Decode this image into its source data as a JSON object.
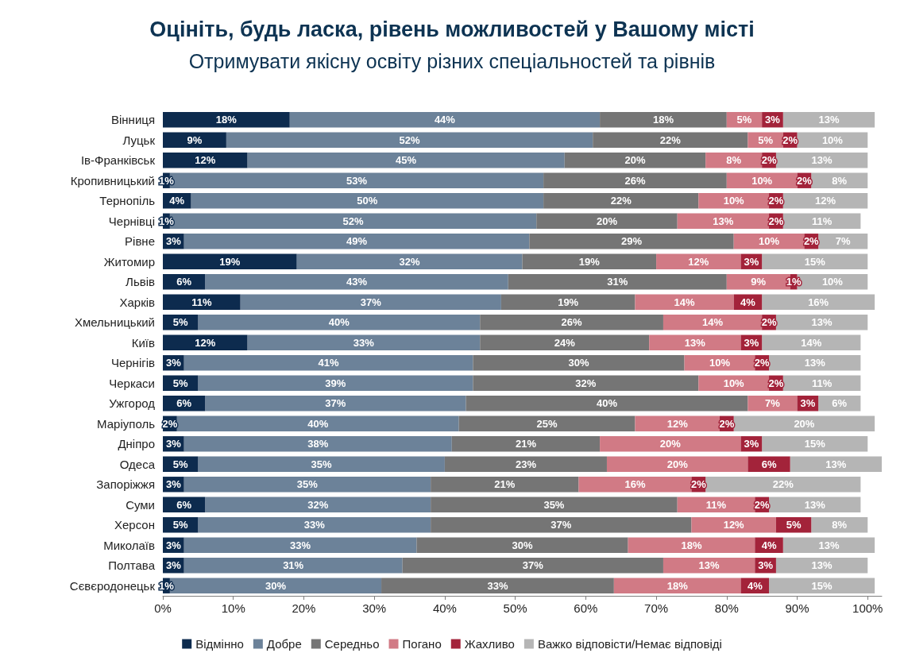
{
  "chart_data": {
    "type": "bar",
    "orientation": "horizontal",
    "stacked": true,
    "title": "Оцініть, будь ласка, рівень можливостей у Вашому місті",
    "subtitle": "Отримувати якісну освіту різних спеціальностей та рівнів",
    "categories": [
      "Вінниця",
      "Луцьк",
      "Ів-Франківськ",
      "Кропивницький",
      "Тернопіль",
      "Чернівці",
      "Рівне",
      "Житомир",
      "Львів",
      "Харків",
      "Хмельницький",
      "Київ",
      "Чернігів",
      "Черкаси",
      "Ужгород",
      "Маріуполь",
      "Дніпро",
      "Одеса",
      "Запоріжжя",
      "Суми",
      "Херсон",
      "Миколаїв",
      "Полтава",
      "Сєвєродонецьк"
    ],
    "series": [
      {
        "name": "Відмінно",
        "color": "#0d2b4e",
        "values": [
          18,
          9,
          12,
          1,
          4,
          1,
          3,
          19,
          6,
          11,
          5,
          12,
          3,
          5,
          6,
          2,
          3,
          5,
          3,
          6,
          5,
          3,
          3,
          1
        ],
        "value_labels": [
          "18%",
          "9%",
          "12%",
          "1%",
          "4%",
          "1%",
          "3%",
          "19%",
          "6%",
          "11%",
          "5%",
          "12%",
          "3%",
          "5%",
          "6%",
          "2%",
          "3%",
          "5%",
          "3%",
          "6%",
          "5%",
          "3%",
          "3%",
          "1%"
        ]
      },
      {
        "name": "Добре",
        "color": "#6c8299",
        "values": [
          44,
          52,
          45,
          53,
          50,
          52,
          49,
          32,
          43,
          37,
          40,
          33,
          41,
          39,
          37,
          40,
          38,
          35,
          35,
          32,
          33,
          33,
          31,
          30
        ],
        "value_labels": [
          "44%",
          "52%",
          "45%",
          "53%",
          "50%",
          "52%",
          "49%",
          "32%",
          "43%",
          "37%",
          "40%",
          "33%",
          "41%",
          "39%",
          "37%",
          "40%",
          "38%",
          "35%",
          "35%",
          "32%",
          "33%",
          "33%",
          "31%",
          "30%"
        ]
      },
      {
        "name": "Середньо",
        "color": "#757575",
        "values": [
          18,
          22,
          20,
          26,
          22,
          20,
          29,
          19,
          31,
          19,
          26,
          24,
          30,
          32,
          40,
          25,
          21,
          23,
          21,
          35,
          37,
          30,
          37,
          33
        ],
        "value_labels": [
          "18%",
          "22%",
          "20%",
          "26%",
          "22%",
          "20%",
          "29%",
          "19%",
          "31%",
          "19%",
          "26%",
          "24%",
          "30%",
          "32%",
          "40%",
          "25%",
          "21%",
          "23%",
          "21%",
          "35%",
          "37%",
          "30%",
          "37%",
          "33%"
        ]
      },
      {
        "name": "Погано",
        "color": "#d17a85",
        "values": [
          5,
          5,
          8,
          10,
          10,
          13,
          10,
          12,
          9,
          14,
          14,
          13,
          10,
          10,
          7,
          12,
          20,
          20,
          16,
          11,
          12,
          18,
          13,
          18
        ],
        "value_labels": [
          "5%",
          "5%",
          "8%",
          "10%",
          "10%",
          "13%",
          "10%",
          "12%",
          "9%",
          "14%",
          "14%",
          "13%",
          "10%",
          "10%",
          "7%",
          "12%",
          "20%",
          "20%",
          "16%",
          "11%",
          "12%",
          "18%",
          "13%",
          "18%"
        ]
      },
      {
        "name": "Жахливо",
        "color": "#a3233a",
        "values": [
          3,
          2,
          2,
          2,
          2,
          2,
          2,
          3,
          1,
          4,
          2,
          3,
          2,
          2,
          3,
          2,
          3,
          6,
          2,
          2,
          5,
          4,
          3,
          4
        ],
        "value_labels": [
          "3%",
          "2%",
          "2%",
          "2%",
          "2%",
          "2%",
          "2%",
          "3%",
          "1%",
          "4%",
          "2%",
          "3%",
          "2%",
          "2%",
          "3%",
          "2%",
          "3%",
          "6%",
          "2%",
          "2%",
          "5%",
          "4%",
          "3%",
          "4%"
        ]
      },
      {
        "name": "Важко відповісти/Немає відповіді",
        "color": "#b5b5b5",
        "values": [
          13,
          10,
          13,
          8,
          12,
          11,
          7,
          15,
          10,
          16,
          13,
          14,
          13,
          11,
          6,
          20,
          15,
          13,
          22,
          13,
          8,
          13,
          13,
          15
        ],
        "value_labels": [
          "13%",
          "10%",
          "13%",
          "8%",
          "12%",
          "11%",
          "7%",
          "15%",
          "10%",
          "16%",
          "13%",
          "14%",
          "13%",
          "11%",
          "6%",
          "20%",
          "15%",
          "13%",
          "22%",
          "13%",
          "8%",
          "13%",
          "13%",
          "15%"
        ]
      }
    ],
    "xlim": [
      0,
      102
    ],
    "xticks": [
      {
        "value": 0,
        "label": "0%"
      },
      {
        "value": 10,
        "label": "10%"
      },
      {
        "value": 20,
        "label": "20%"
      },
      {
        "value": 30,
        "label": "30%"
      },
      {
        "value": 40,
        "label": "40%"
      },
      {
        "value": 50,
        "label": "50%"
      },
      {
        "value": 60,
        "label": "60%"
      },
      {
        "value": 70,
        "label": "70%"
      },
      {
        "value": 80,
        "label": "80%"
      },
      {
        "value": 90,
        "label": "90%"
      },
      {
        "value": 100,
        "label": "100%"
      }
    ],
    "grid": false,
    "legend": "bottom"
  }
}
